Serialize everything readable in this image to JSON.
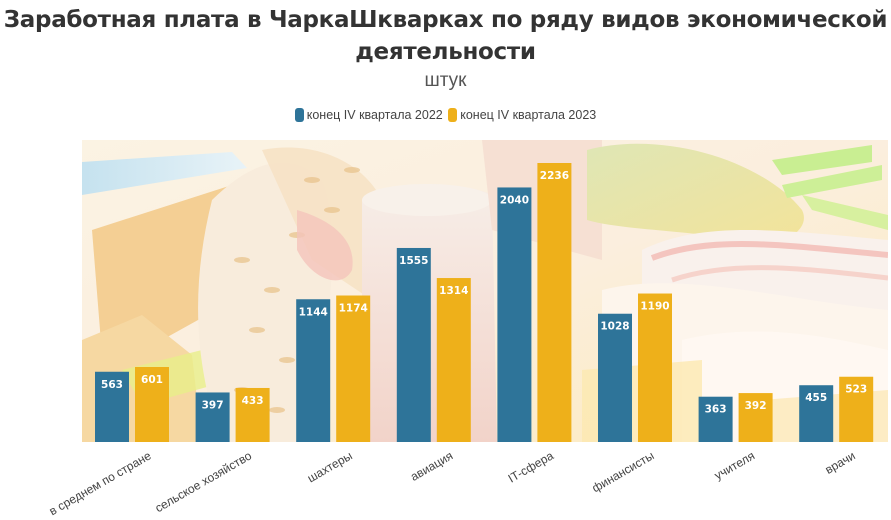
{
  "chart_data": {
    "type": "bar",
    "title": "Заработная плата в ЧаркаШкварках по ряду видов экономической деятельности",
    "subtitle": "штук",
    "xlabel": "",
    "ylabel": "",
    "ylim": [
      0,
      2236
    ],
    "grid": false,
    "legend_position": "top-center",
    "categories": [
      "в среднем по стране",
      "сельское хозяйство",
      "шахтеры",
      "авиация",
      "IT-сфера",
      "финансисты",
      "учителя",
      "врачи"
    ],
    "series": [
      {
        "name": "конец IV квартала 2022",
        "color": "#2e7499",
        "values": [
          563,
          397,
          1144,
          1555,
          2040,
          1028,
          363,
          455
        ]
      },
      {
        "name": "конец IV квартала 2023",
        "color": "#eeb01a",
        "values": [
          601,
          433,
          1174,
          1314,
          2236,
          1190,
          392,
          523
        ]
      }
    ]
  },
  "header": {
    "title_line1": "Заработная плата в ЧаркаШкварках по ряду видов экономической",
    "title_line2": "деятельности",
    "subtitle": "штук"
  },
  "legend": [
    {
      "label": "конец IV квартала 2022",
      "color": "#2e7499"
    },
    {
      "label": "конец IV квартала 2023",
      "color": "#eeb01a"
    }
  ]
}
